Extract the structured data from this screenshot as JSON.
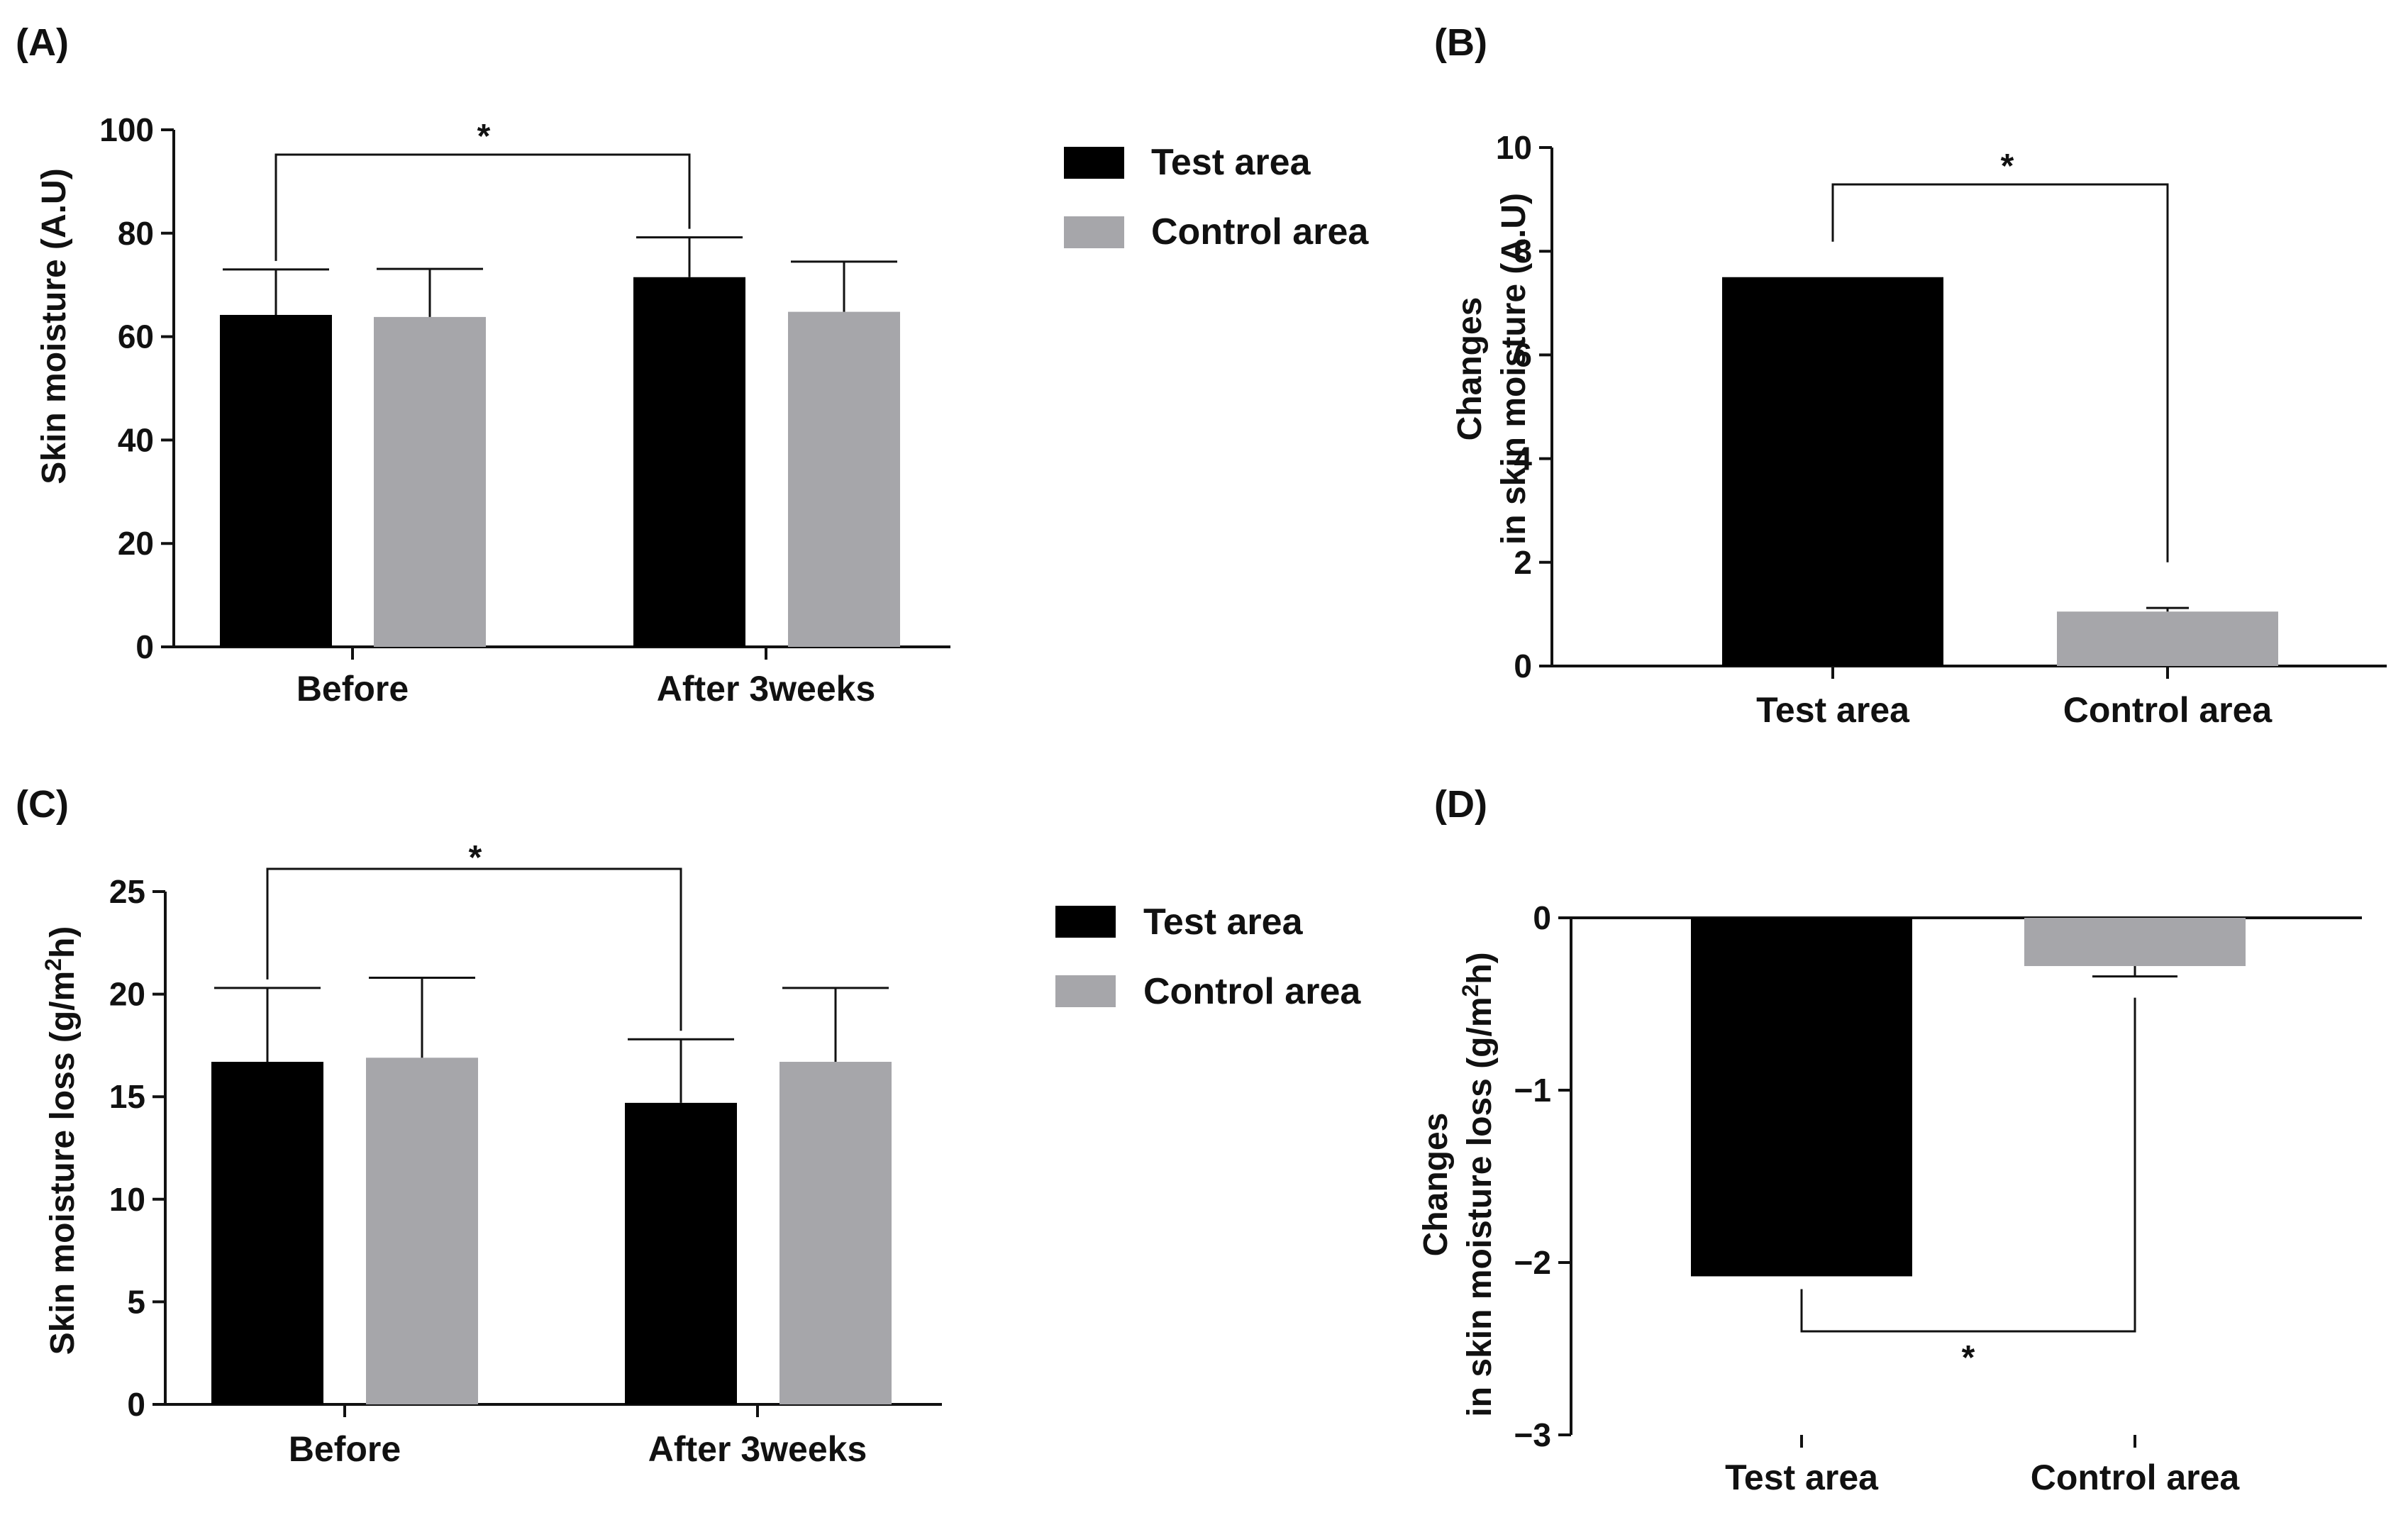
{
  "colors": {
    "test": "#000000",
    "control": "#a6a6aa",
    "axis": "#111111"
  },
  "legend": {
    "test_label": "Test area",
    "control_label": "Control area"
  },
  "chart_data": [
    {
      "panel": "(A)",
      "type": "bar",
      "categories": [
        "Before",
        "After 3weeks"
      ],
      "series": [
        {
          "name": "Test area",
          "values": [
            64.2,
            71.5
          ],
          "errors": [
            8.8,
            7.7
          ]
        },
        {
          "name": "Control area",
          "values": [
            63.8,
            64.8
          ],
          "errors": [
            9.3,
            9.7
          ]
        }
      ],
      "ylabel": "Skin moisture (A.U)",
      "ylim": [
        0,
        100
      ],
      "yticks": [
        "0",
        "20",
        "40",
        "60",
        "80",
        "100"
      ],
      "significance": "*"
    },
    {
      "panel": "(B)",
      "type": "bar",
      "categories": [
        "Test area",
        "Control area"
      ],
      "values": [
        7.5,
        1.05
      ],
      "errors": [
        0.0,
        0.07
      ],
      "ylabel_line1": "Changes",
      "ylabel_line2": "in skin moisture (A.U)",
      "ylim": [
        0,
        10
      ],
      "yticks": [
        "0",
        "2",
        "4",
        "6",
        "8",
        "10"
      ],
      "significance": "*"
    },
    {
      "panel": "(C)",
      "type": "bar",
      "categories": [
        "Before",
        "After 3weeks"
      ],
      "series": [
        {
          "name": "Test area",
          "values": [
            16.7,
            14.7
          ],
          "errors": [
            3.6,
            3.1
          ]
        },
        {
          "name": "Control area",
          "values": [
            16.9,
            16.7
          ],
          "errors": [
            3.9,
            3.6
          ]
        }
      ],
      "ylabel_pre": "Skin moisture loss (g/m",
      "ylabel_sup": "2",
      "ylabel_post": "h)",
      "ylim": [
        0,
        25
      ],
      "yticks": [
        "0",
        "5",
        "10",
        "15",
        "20",
        "25"
      ],
      "significance": "*"
    },
    {
      "panel": "(D)",
      "type": "bar",
      "categories": [
        "Test area",
        "Control area"
      ],
      "values": [
        -2.08,
        -0.28
      ],
      "errors": [
        0.0,
        0.06
      ],
      "ylabel_line1": "Changes",
      "ylabel_line2_pre": "in skin moisture loss (g/m",
      "ylabel_line2_sup": "2",
      "ylabel_line2_post": "h)",
      "ylim": [
        -3,
        0
      ],
      "yticks": [
        "0",
        "−1",
        "−2",
        "−3"
      ],
      "significance": "*"
    }
  ]
}
